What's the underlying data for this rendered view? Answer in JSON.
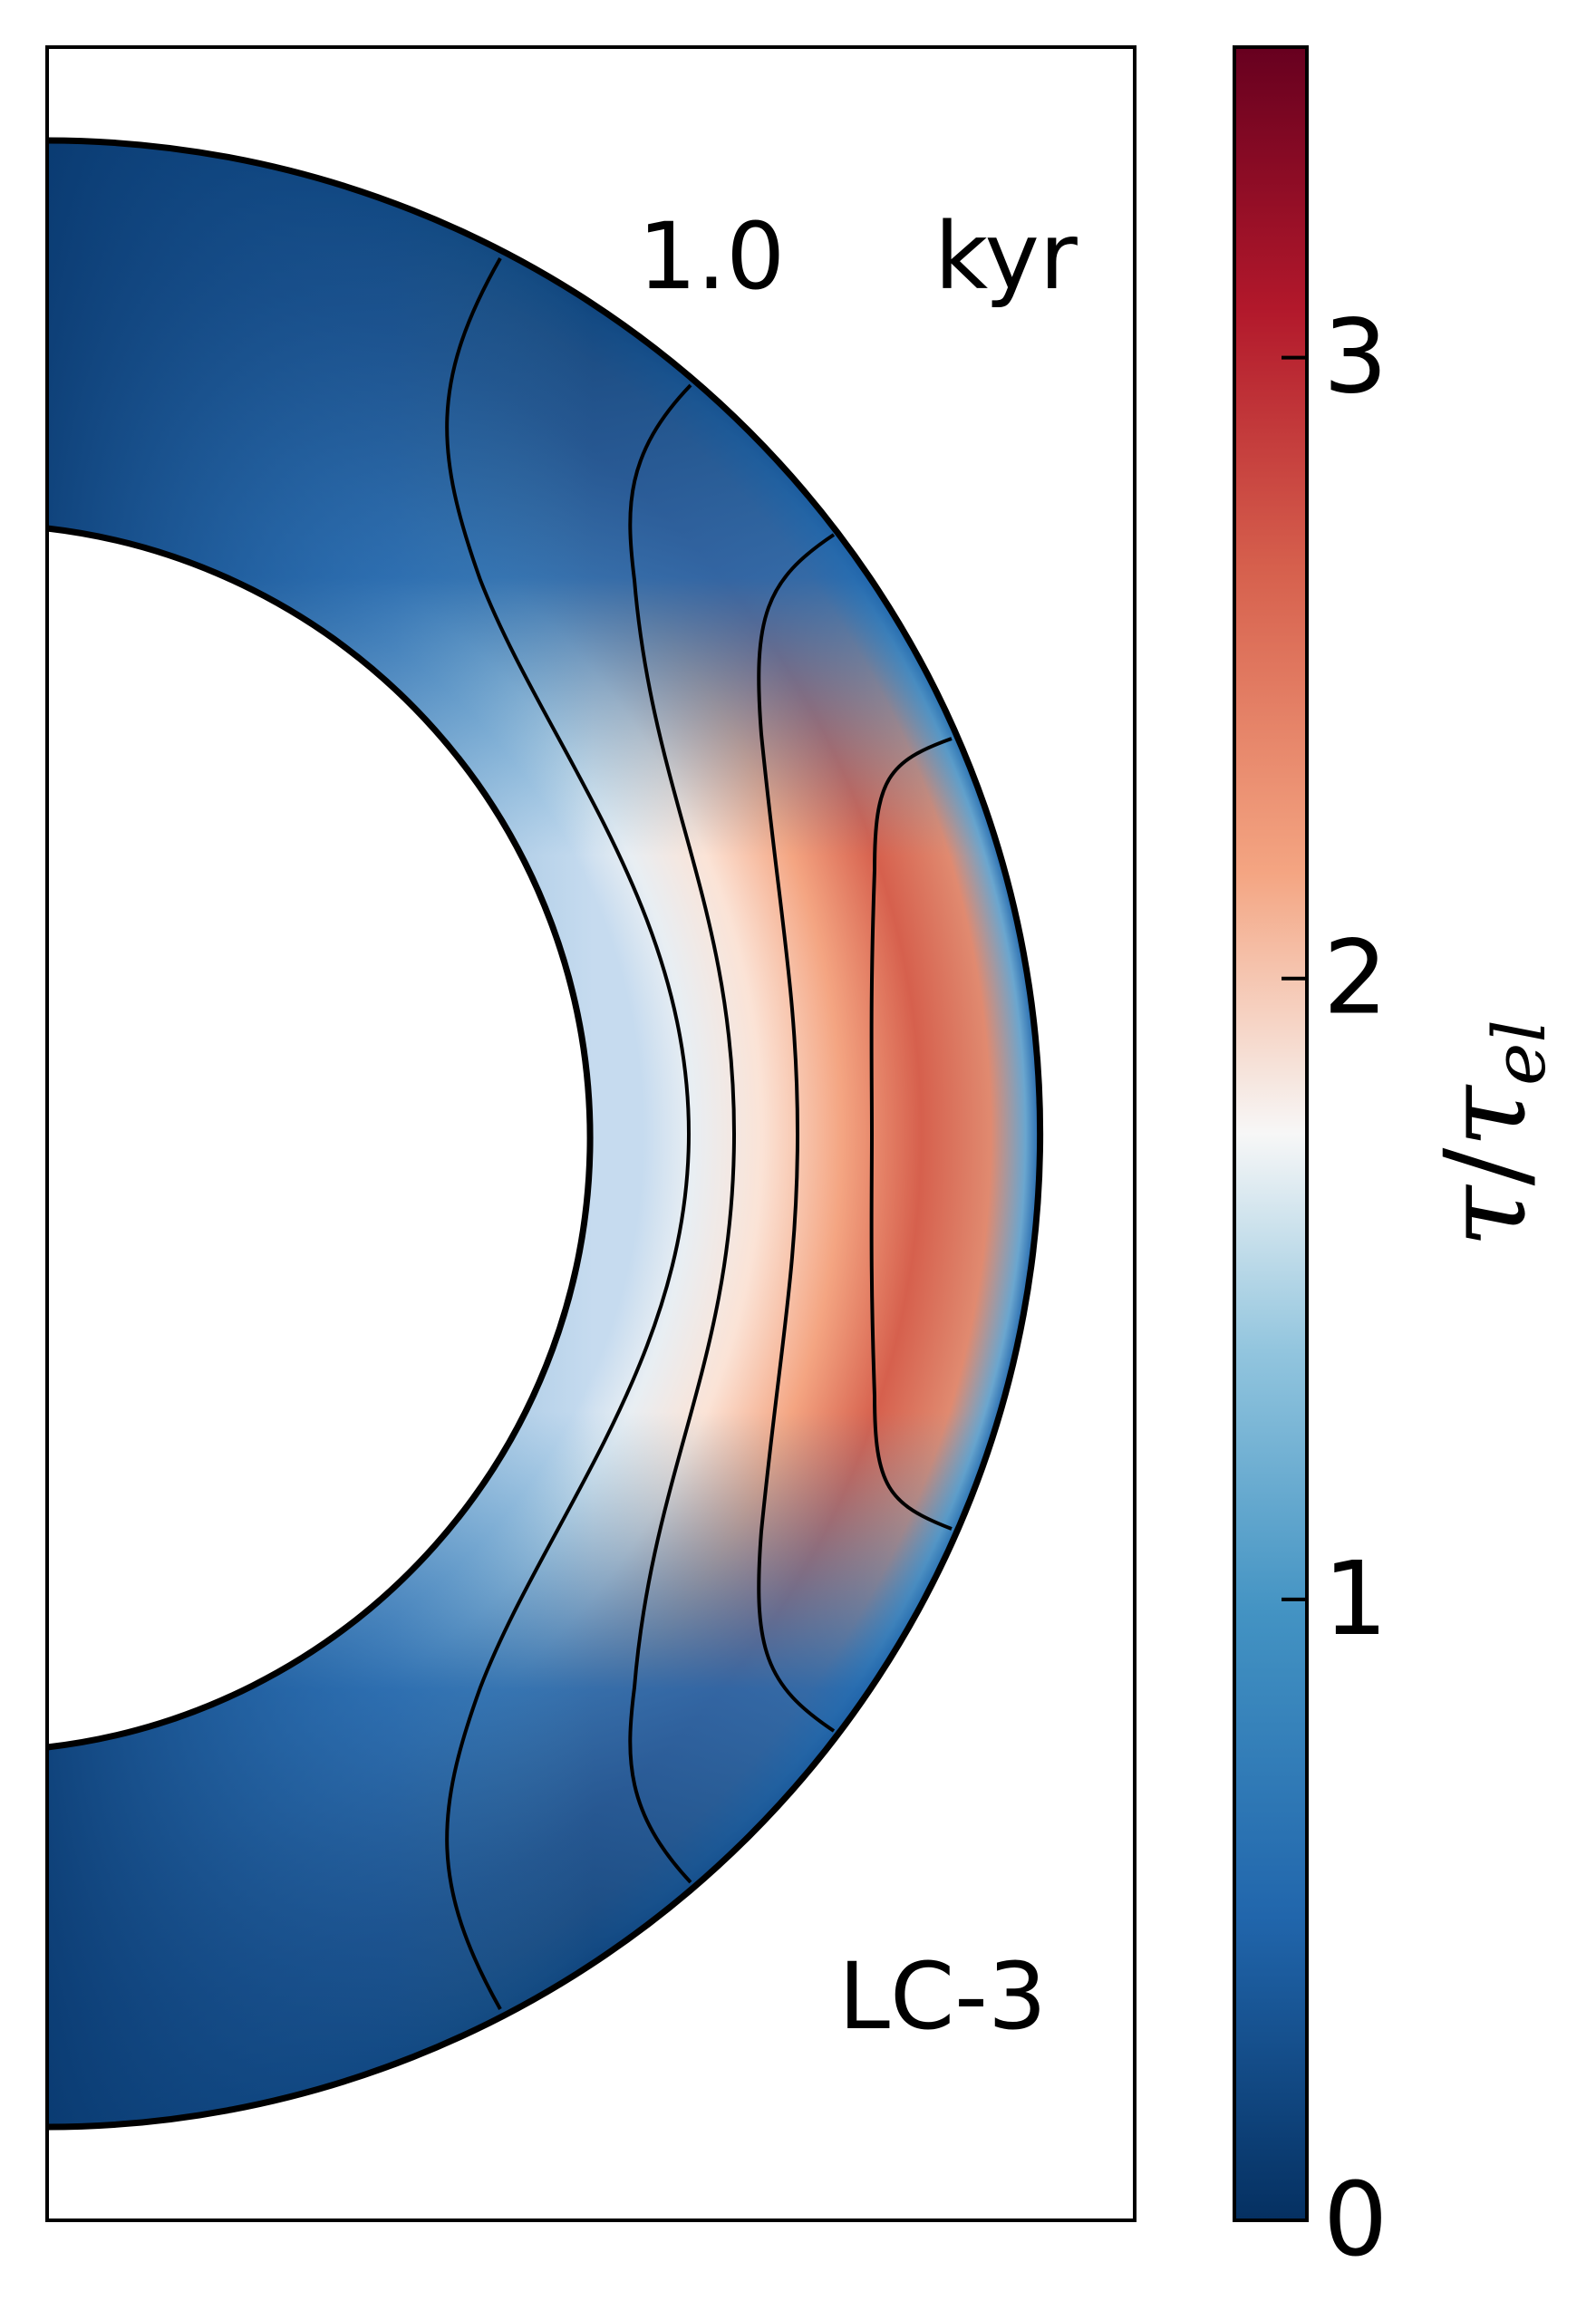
{
  "chart_data": {
    "type": "heatmap",
    "title": "",
    "annotations": {
      "time_label": "1.0",
      "time_unit": "kyr",
      "model_label": "LC-3"
    },
    "colorbar": {
      "label": "τ/τ_el",
      "label_main": "τ",
      "label_slash": "/",
      "label_denominator": "τ",
      "label_subscript": "el",
      "colormap": "RdBu_r",
      "vmin": 0,
      "vmax": 3.5,
      "ticks": [
        0,
        1,
        2,
        3
      ],
      "tick_labels": [
        "0",
        "1",
        "2",
        "3"
      ]
    },
    "domain": {
      "geometry": "meridional half-shell (crust) cross-section",
      "r_inner_relative": 0.6,
      "r_outer": 1.0
    },
    "field_values": {
      "description": "tau/tau_el sampled along the equatorial radius (inner to outer) and at mid latitudes",
      "equator_profile": [
        {
          "r": 0.6,
          "value": 1.3
        },
        {
          "r": 0.65,
          "value": 1.6
        },
        {
          "r": 0.72,
          "value": 2.0
        },
        {
          "r": 0.8,
          "value": 2.5
        },
        {
          "r": 0.88,
          "value": 2.9
        },
        {
          "r": 0.95,
          "value": 2.8
        },
        {
          "r": 1.0,
          "value": 0.3
        }
      ],
      "pole_value": 0.1,
      "max_value": 2.9
    },
    "field_lines": {
      "count": 4,
      "description": "magnetic field line contours anchored at the outer surface"
    },
    "colors": {
      "low": "#053061",
      "mid_low": "#4393c3",
      "mid": "#f7f7f7",
      "mid_high": "#f4a582",
      "high": "#67001f"
    }
  }
}
